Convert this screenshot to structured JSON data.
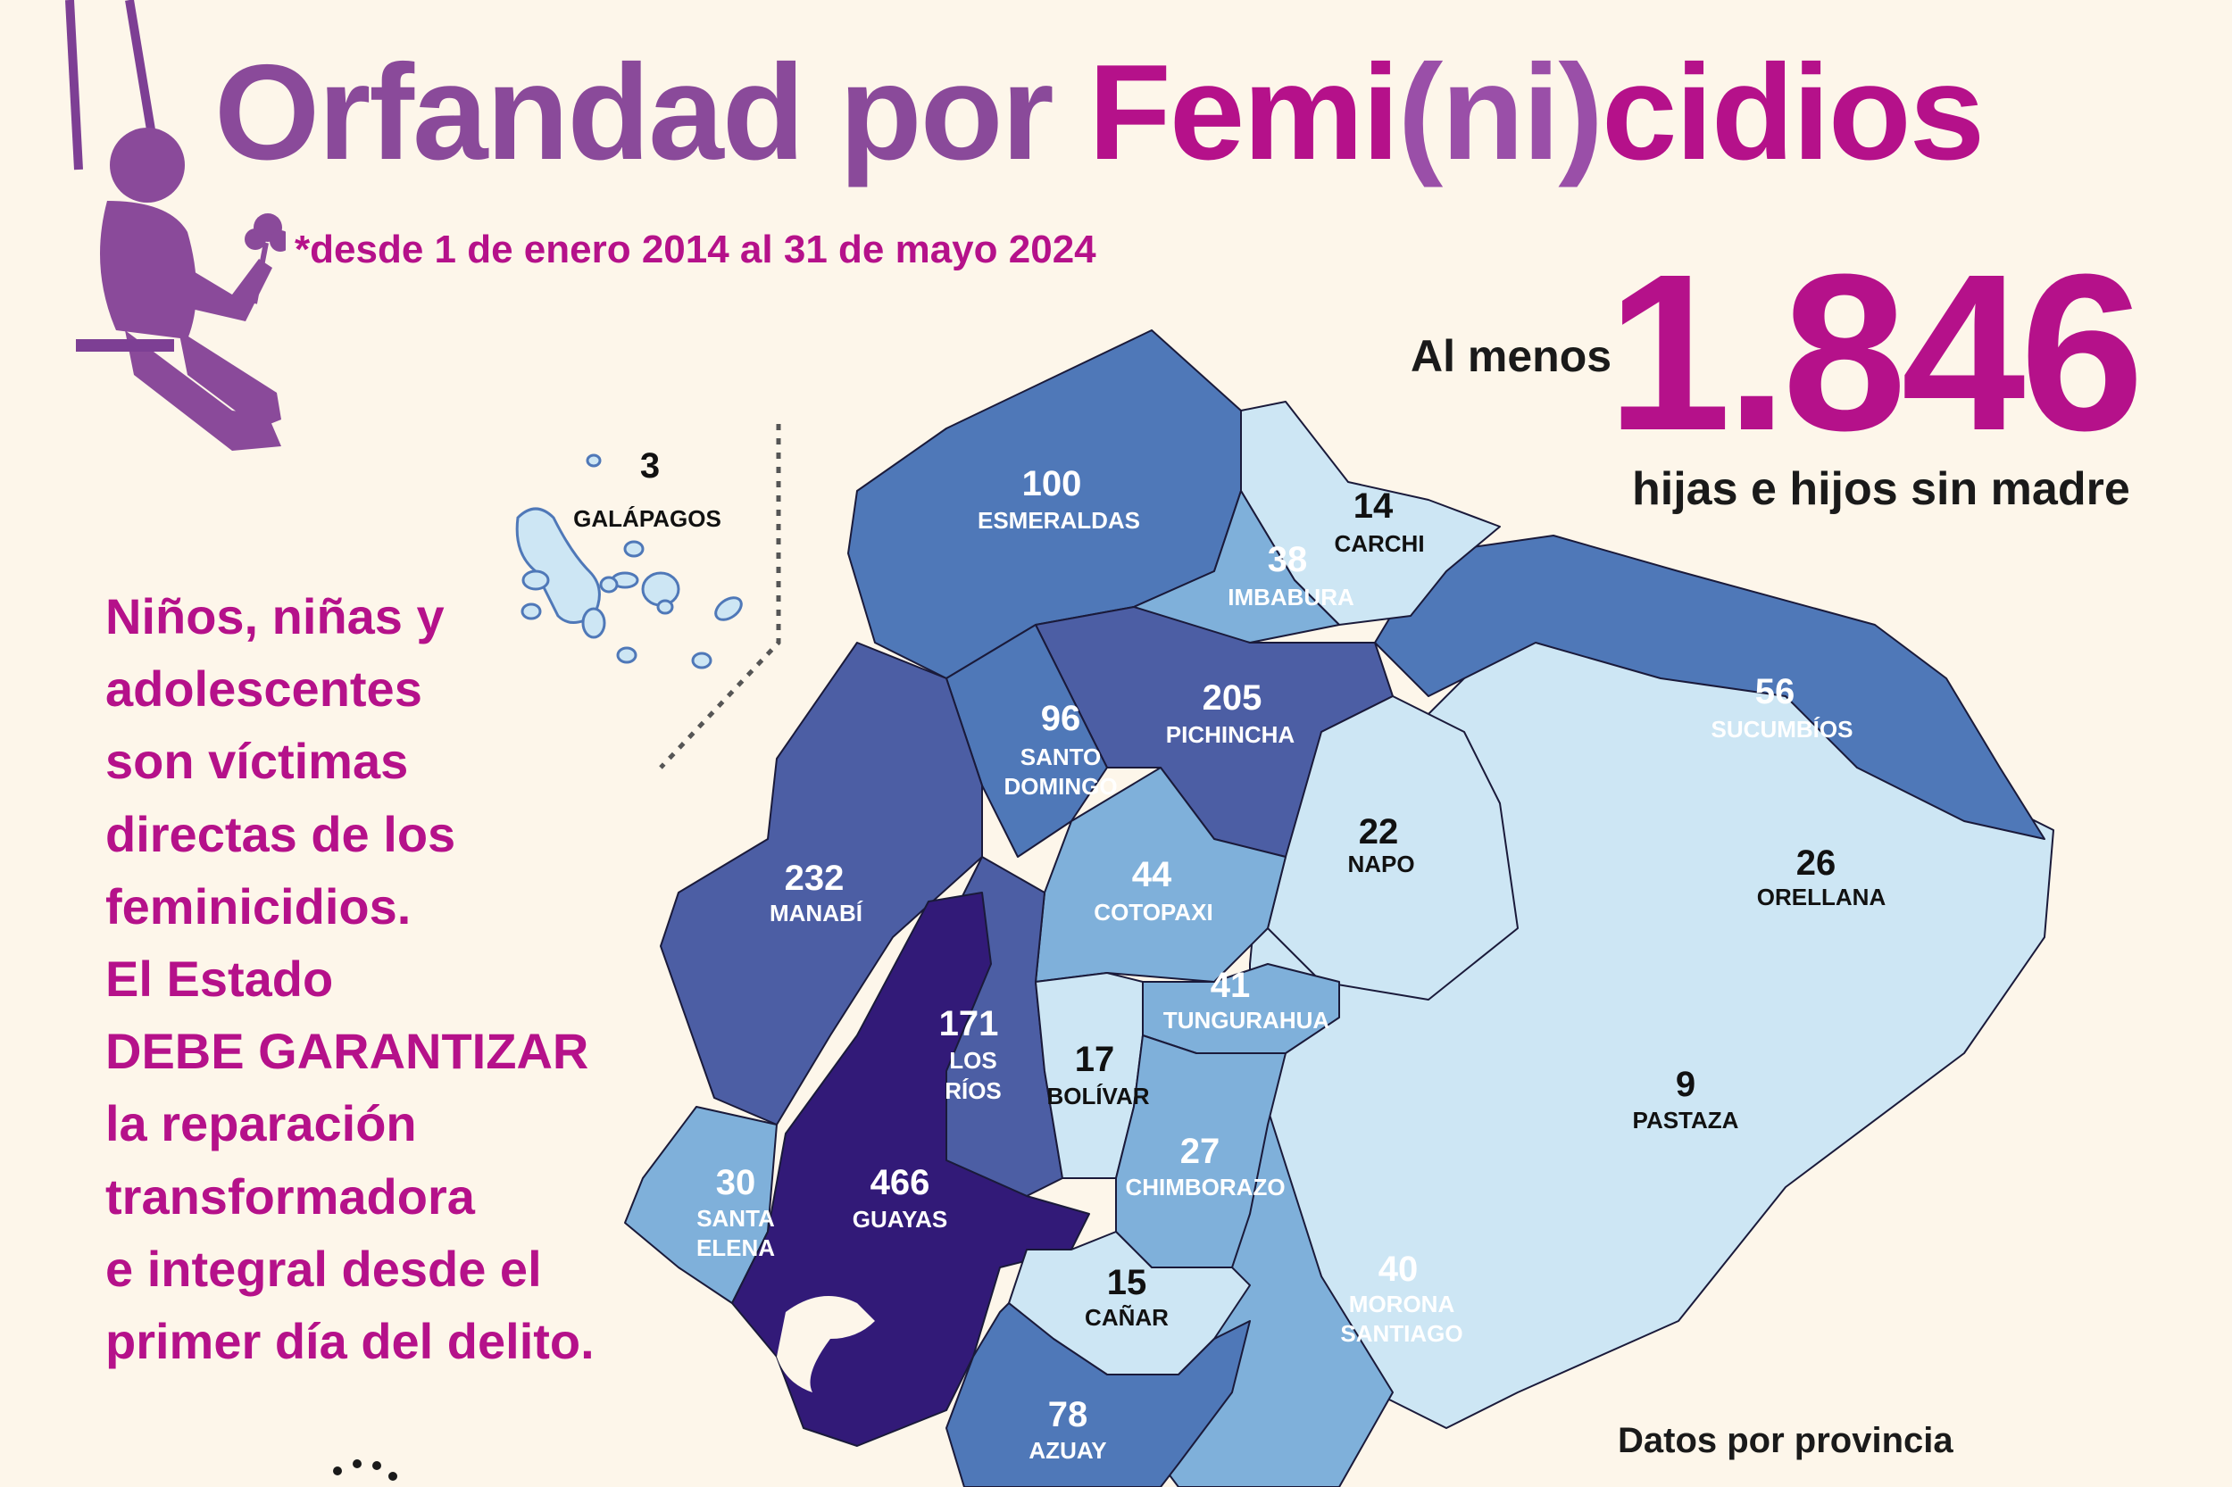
{
  "header": {
    "title_part1": "Orfandad por ",
    "title_part2": "Femi",
    "title_part3": "(ni)",
    "title_part4": "cidios",
    "date_range": "*desde 1 de enero 2014 al 31 de mayo 2024"
  },
  "stat": {
    "prefix": "Al menos",
    "value": "1.846",
    "caption": "hijas e hijos sin madre"
  },
  "body_text": [
    "Niños, niñas y",
    "adolescentes",
    "son víctimas",
    "directas de los",
    "feminicidios.",
    "El Estado",
    "DEBE GARANTIZAR",
    "la reparación",
    "transformadora",
    "e integral desde el",
    "primer día del delito."
  ],
  "source_note": "Datos por provincia",
  "provinces": [
    {
      "name": "GALÁPAGOS",
      "value": "3"
    },
    {
      "name": "ESMERALDAS",
      "value": "100"
    },
    {
      "name": "CARCHI",
      "value": "14"
    },
    {
      "name": "IMBABURA",
      "value": "38"
    },
    {
      "name": "SUCUMBÍOS",
      "value": "56"
    },
    {
      "name": "PICHINCHA",
      "value": "205"
    },
    {
      "name": "SANTO DOMINGO",
      "name_line1": "SANTO",
      "name_line2": "DOMINGO",
      "value": "96"
    },
    {
      "name": "MANABÍ",
      "value": "232"
    },
    {
      "name": "COTOPAXI",
      "value": "44"
    },
    {
      "name": "NAPO",
      "value": "22"
    },
    {
      "name": "ORELLANA",
      "value": "26"
    },
    {
      "name": "TUNGURAHUA",
      "value": "41"
    },
    {
      "name": "LOS RÍOS",
      "name_line1": "LOS",
      "name_line2": "RÍOS",
      "value": "171"
    },
    {
      "name": "BOLÍVAR",
      "value": "17"
    },
    {
      "name": "PASTAZA",
      "value": "9"
    },
    {
      "name": "SANTA ELENA",
      "name_line1": "SANTA",
      "name_line2": "ELENA",
      "value": "30"
    },
    {
      "name": "GUAYAS",
      "value": "466"
    },
    {
      "name": "CHIMBORAZO",
      "value": "27"
    },
    {
      "name": "CAÑAR",
      "value": "15"
    },
    {
      "name": "MORONA SANTIAGO",
      "name_line1": "MORONA",
      "name_line2": "SANTIAGO",
      "value": "40"
    },
    {
      "name": "AZUAY",
      "value": "78"
    }
  ],
  "colors": {
    "background": "#fdf6ea",
    "magenta": "#b5118a",
    "purple": "#8a4a9a",
    "scale_1": "#cde6f4",
    "scale_2": "#7fb0da",
    "scale_3": "#4f78b8",
    "scale_4": "#4c5ea4",
    "scale_5": "#321a78"
  },
  "icons": [
    "child-on-swing-icon"
  ]
}
